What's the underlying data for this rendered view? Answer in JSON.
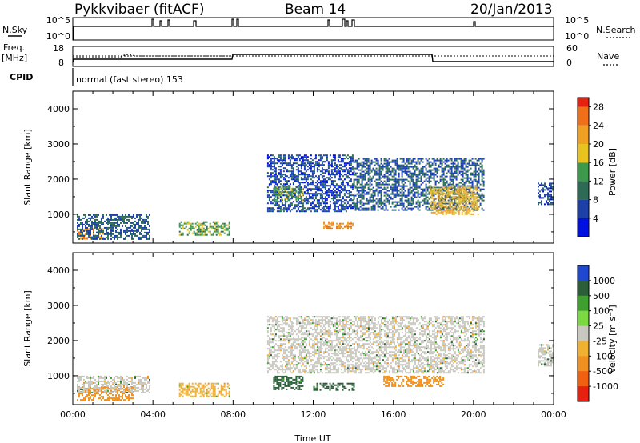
{
  "header": {
    "station": "Pykkvibaer (fitACF)",
    "beam": "Beam 14",
    "date": "20/Jan/2013"
  },
  "status_panels": {
    "nsky_label": "N.Sky",
    "nsky_ticks": [
      "10^5",
      "10^0"
    ],
    "nsearch_label": "N.Search",
    "nsearch_ticks": [
      "10^5",
      "10^0"
    ],
    "freq_label": "Freq.",
    "freq_unit": "[MHz]",
    "freq_ticks": [
      "18",
      "8"
    ],
    "nave_label": "Nave",
    "nave_ticks": [
      "60",
      "0"
    ],
    "cpid_label": "CPID",
    "cpid_text": "normal (fast stereo) 153"
  },
  "colors": {
    "power_scale": [
      "#0010e0",
      "#1d3fa8",
      "#2e6b56",
      "#3c9a4a",
      "#e8c21e",
      "#f0a020",
      "#f07018",
      "#e82010"
    ],
    "velocity_scale": [
      "#2047d0",
      "#2d5e3a",
      "#3fa030",
      "#7ad840",
      "#c8c8c0",
      "#f0b030",
      "#f09020",
      "#f06010",
      "#e82010"
    ]
  },
  "chart_data": [
    {
      "type": "heatmap",
      "name": "power",
      "ylabel": "Slant Range [km]",
      "ylim": [
        180,
        4500
      ],
      "yticks": [
        1000,
        2000,
        3000,
        4000
      ],
      "xlim": [
        "00:00",
        "24:00"
      ],
      "colorbar": {
        "label": "Power [dB]",
        "ticks": [
          4,
          8,
          12,
          16,
          20,
          24,
          28
        ],
        "range": [
          0,
          30
        ]
      },
      "echo_regions": [
        {
          "t_start": 0.2,
          "t_end": 1.5,
          "r_min": 300,
          "r_max": 600,
          "level": 24
        },
        {
          "t_start": 0.2,
          "t_end": 3.8,
          "r_min": 300,
          "r_max": 1000,
          "level": 8
        },
        {
          "t_start": 5.3,
          "t_end": 7.8,
          "r_min": 400,
          "r_max": 800,
          "level": 14
        },
        {
          "t_start": 9.7,
          "t_end": 14.0,
          "r_min": 1100,
          "r_max": 2700,
          "level": 6
        },
        {
          "t_start": 10.0,
          "t_end": 11.5,
          "r_min": 1400,
          "r_max": 1800,
          "level": 14
        },
        {
          "t_start": 12.5,
          "t_end": 14.0,
          "r_min": 600,
          "r_max": 800,
          "level": 24
        },
        {
          "t_start": 14.0,
          "t_end": 20.5,
          "r_min": 1100,
          "r_max": 2600,
          "level": 8
        },
        {
          "t_start": 17.8,
          "t_end": 20.2,
          "r_min": 1000,
          "r_max": 1800,
          "level": 20
        },
        {
          "t_start": 23.2,
          "t_end": 24.0,
          "r_min": 1300,
          "r_max": 1900,
          "level": 6
        }
      ]
    },
    {
      "type": "heatmap",
      "name": "velocity",
      "ylabel": "Slant Range [km]",
      "xlabel": "Time UT",
      "ylim": [
        180,
        4500
      ],
      "yticks": [
        1000,
        2000,
        3000,
        4000
      ],
      "xlim": [
        "00:00",
        "24:00"
      ],
      "xticks": [
        "00:00",
        "04:00",
        "08:00",
        "12:00",
        "16:00",
        "20:00",
        "00:00"
      ],
      "colorbar": {
        "label": "Velocity [m s⁻¹]",
        "ticks": [
          1000,
          500,
          100,
          25,
          -25,
          -100,
          -500,
          -1000
        ]
      },
      "echo_regions": [
        {
          "t_start": 0.2,
          "t_end": 3.0,
          "r_min": 300,
          "r_max": 700,
          "velocity": -300
        },
        {
          "t_start": 0.2,
          "t_end": 3.8,
          "r_min": 500,
          "r_max": 1000,
          "velocity": 0
        },
        {
          "t_start": 5.3,
          "t_end": 7.8,
          "r_min": 400,
          "r_max": 800,
          "velocity": -80
        },
        {
          "t_start": 9.7,
          "t_end": 20.5,
          "r_min": 1100,
          "r_max": 2700,
          "velocity": 0
        },
        {
          "t_start": 10.0,
          "t_end": 11.5,
          "r_min": 600,
          "r_max": 1000,
          "velocity": 150
        },
        {
          "t_start": 12.0,
          "t_end": 14.0,
          "r_min": 600,
          "r_max": 800,
          "velocity": 200
        },
        {
          "t_start": 15.5,
          "t_end": 18.5,
          "r_min": 700,
          "r_max": 1000,
          "velocity": -150
        },
        {
          "t_start": 23.2,
          "t_end": 24.0,
          "r_min": 1300,
          "r_max": 1900,
          "velocity": 0
        }
      ]
    }
  ]
}
